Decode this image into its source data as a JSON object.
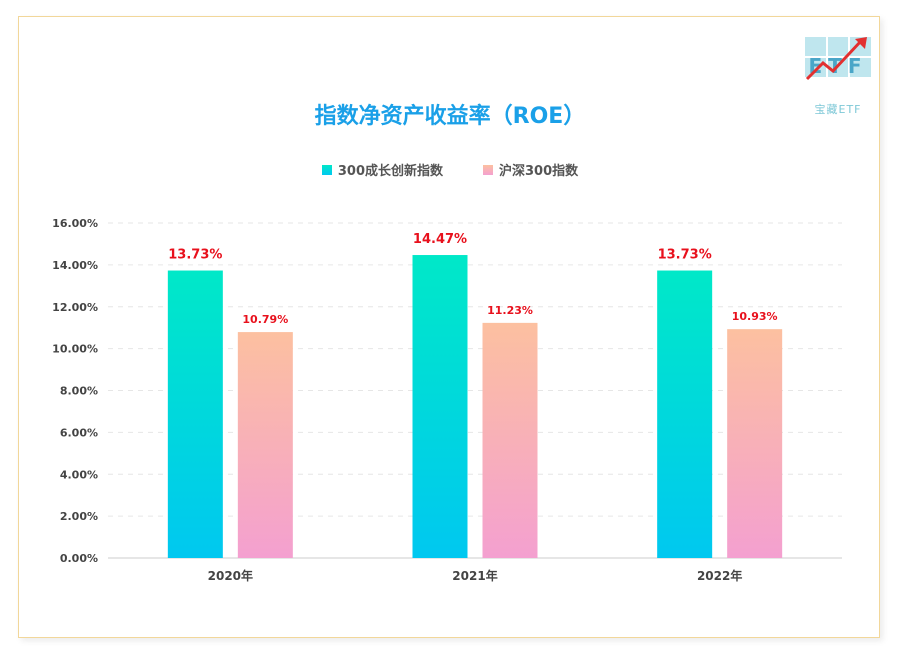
{
  "logo": {
    "mark": "ETF",
    "caption": "宝藏ETF"
  },
  "colors": {
    "series1_top": "#00e8c8",
    "series1_bottom": "#00c8f0",
    "series2_top": "#fcc0a0",
    "series2_bottom": "#f4a0d0",
    "label_red": "#e8101c",
    "title_blue": "#1aa0e8"
  },
  "chart_data": {
    "type": "bar",
    "title": "指数净资产收益率（ROE）",
    "categories": [
      "2020年",
      "2021年",
      "2022年"
    ],
    "series": [
      {
        "name": "300成长创新指数",
        "values": [
          13.73,
          14.47,
          13.73
        ],
        "labels": [
          "13.73%",
          "14.47%",
          "13.73%"
        ]
      },
      {
        "name": "沪深300指数",
        "values": [
          10.79,
          11.23,
          10.93
        ],
        "labels": [
          "10.79%",
          "11.23%",
          "10.93%"
        ]
      }
    ],
    "yticks": [
      "0.00%",
      "2.00%",
      "4.00%",
      "6.00%",
      "8.00%",
      "10.00%",
      "12.00%",
      "14.00%",
      "16.00%"
    ],
    "ylim": [
      0,
      16
    ],
    "grid": true,
    "legend_position": "top-center"
  }
}
